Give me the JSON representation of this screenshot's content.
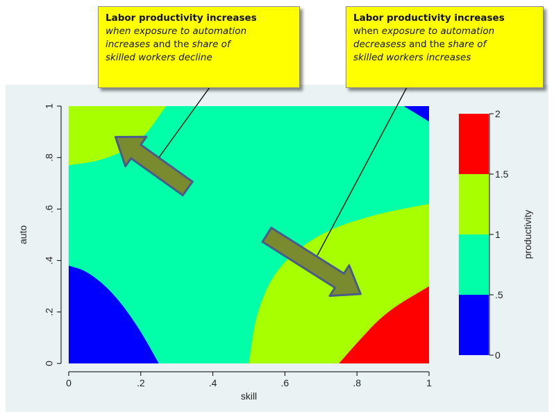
{
  "annotations": {
    "left": {
      "title": "Labor productivity increases",
      "line1": "when exposure to automation",
      "line2_a": "increases",
      "line2_b": " and the ",
      "line2_c": "share of",
      "line3": "skilled workers decline"
    },
    "right": {
      "title": "Labor productivity increases",
      "line1_a": "when ",
      "line1_b": "exposure to automation",
      "line2_a": "decreasess",
      "line2_b": " and the ",
      "line2_c": "share of",
      "line3": "skilled workers increases"
    }
  },
  "chart_data": {
    "type": "heatmap",
    "xlabel": "skill",
    "ylabel": "auto",
    "colorbar_label": "productivity",
    "xlim": [
      0,
      1
    ],
    "ylim": [
      0,
      1
    ],
    "x_ticks": [
      {
        "v": 0,
        "label": "0"
      },
      {
        "v": 0.2,
        "label": ".2"
      },
      {
        "v": 0.4,
        "label": ".4"
      },
      {
        "v": 0.6,
        "label": ".6"
      },
      {
        "v": 0.8,
        "label": ".8"
      },
      {
        "v": 1,
        "label": "1"
      }
    ],
    "y_ticks": [
      {
        "v": 0,
        "label": "0"
      },
      {
        "v": 0.2,
        "label": ".2"
      },
      {
        "v": 0.4,
        "label": ".4"
      },
      {
        "v": 0.6,
        "label": ".6"
      },
      {
        "v": 0.8,
        "label": ".8"
      },
      {
        "v": 1,
        "label": "1"
      }
    ],
    "levels": [
      {
        "from": 0,
        "to": 0.5,
        "color": "#0000ff"
      },
      {
        "from": 0.5,
        "to": 1,
        "color": "#00ffa8"
      },
      {
        "from": 1,
        "to": 1.5,
        "color": "#a8ff00"
      },
      {
        "from": 1.5,
        "to": 2,
        "color": "#ff0000"
      }
    ],
    "colorbar_ticks": [
      {
        "v": 0,
        "label": "0"
      },
      {
        "v": 0.5,
        "label": ".5"
      },
      {
        "v": 1,
        "label": "1"
      },
      {
        "v": 1.5,
        "label": "1.5"
      },
      {
        "v": 2,
        "label": "2"
      }
    ],
    "regions": [
      {
        "level": 0,
        "corner": "bottom-left",
        "boundary": [
          [
            0.25,
            0
          ],
          [
            0.19,
            0.15
          ],
          [
            0.12,
            0.28
          ],
          [
            0.05,
            0.36
          ],
          [
            0,
            0.38
          ]
        ]
      },
      {
        "level": 2,
        "corner": "top-left",
        "boundary": [
          [
            0,
            0.77
          ],
          [
            0.1,
            0.79
          ],
          [
            0.2,
            0.86
          ],
          [
            0.27,
            1
          ]
        ]
      },
      {
        "level": 2,
        "corner": "bottom-right",
        "boundary": [
          [
            0.5,
            0
          ],
          [
            0.52,
            0.2
          ],
          [
            0.58,
            0.38
          ],
          [
            0.7,
            0.51
          ],
          [
            0.85,
            0.58
          ],
          [
            1,
            0.62
          ]
        ]
      },
      {
        "level": 3,
        "corner": "bottom-right",
        "boundary": [
          [
            0.75,
            0
          ],
          [
            0.8,
            0.08
          ],
          [
            0.88,
            0.2
          ],
          [
            1,
            0.3
          ]
        ]
      },
      {
        "level": 0,
        "corner": "top-right",
        "boundary": [
          [
            0.93,
            1
          ],
          [
            1,
            0.94
          ]
        ]
      }
    ],
    "arrows": [
      {
        "from": [
          0.33,
          0.68
        ],
        "to": [
          0.13,
          0.88
        ]
      },
      {
        "from": [
          0.55,
          0.5
        ],
        "to": [
          0.81,
          0.27
        ]
      }
    ],
    "callouts": [
      {
        "note": "left",
        "to": [
          0.25,
          0.8
        ]
      },
      {
        "note": "right",
        "to": [
          0.69,
          0.42
        ]
      }
    ]
  }
}
